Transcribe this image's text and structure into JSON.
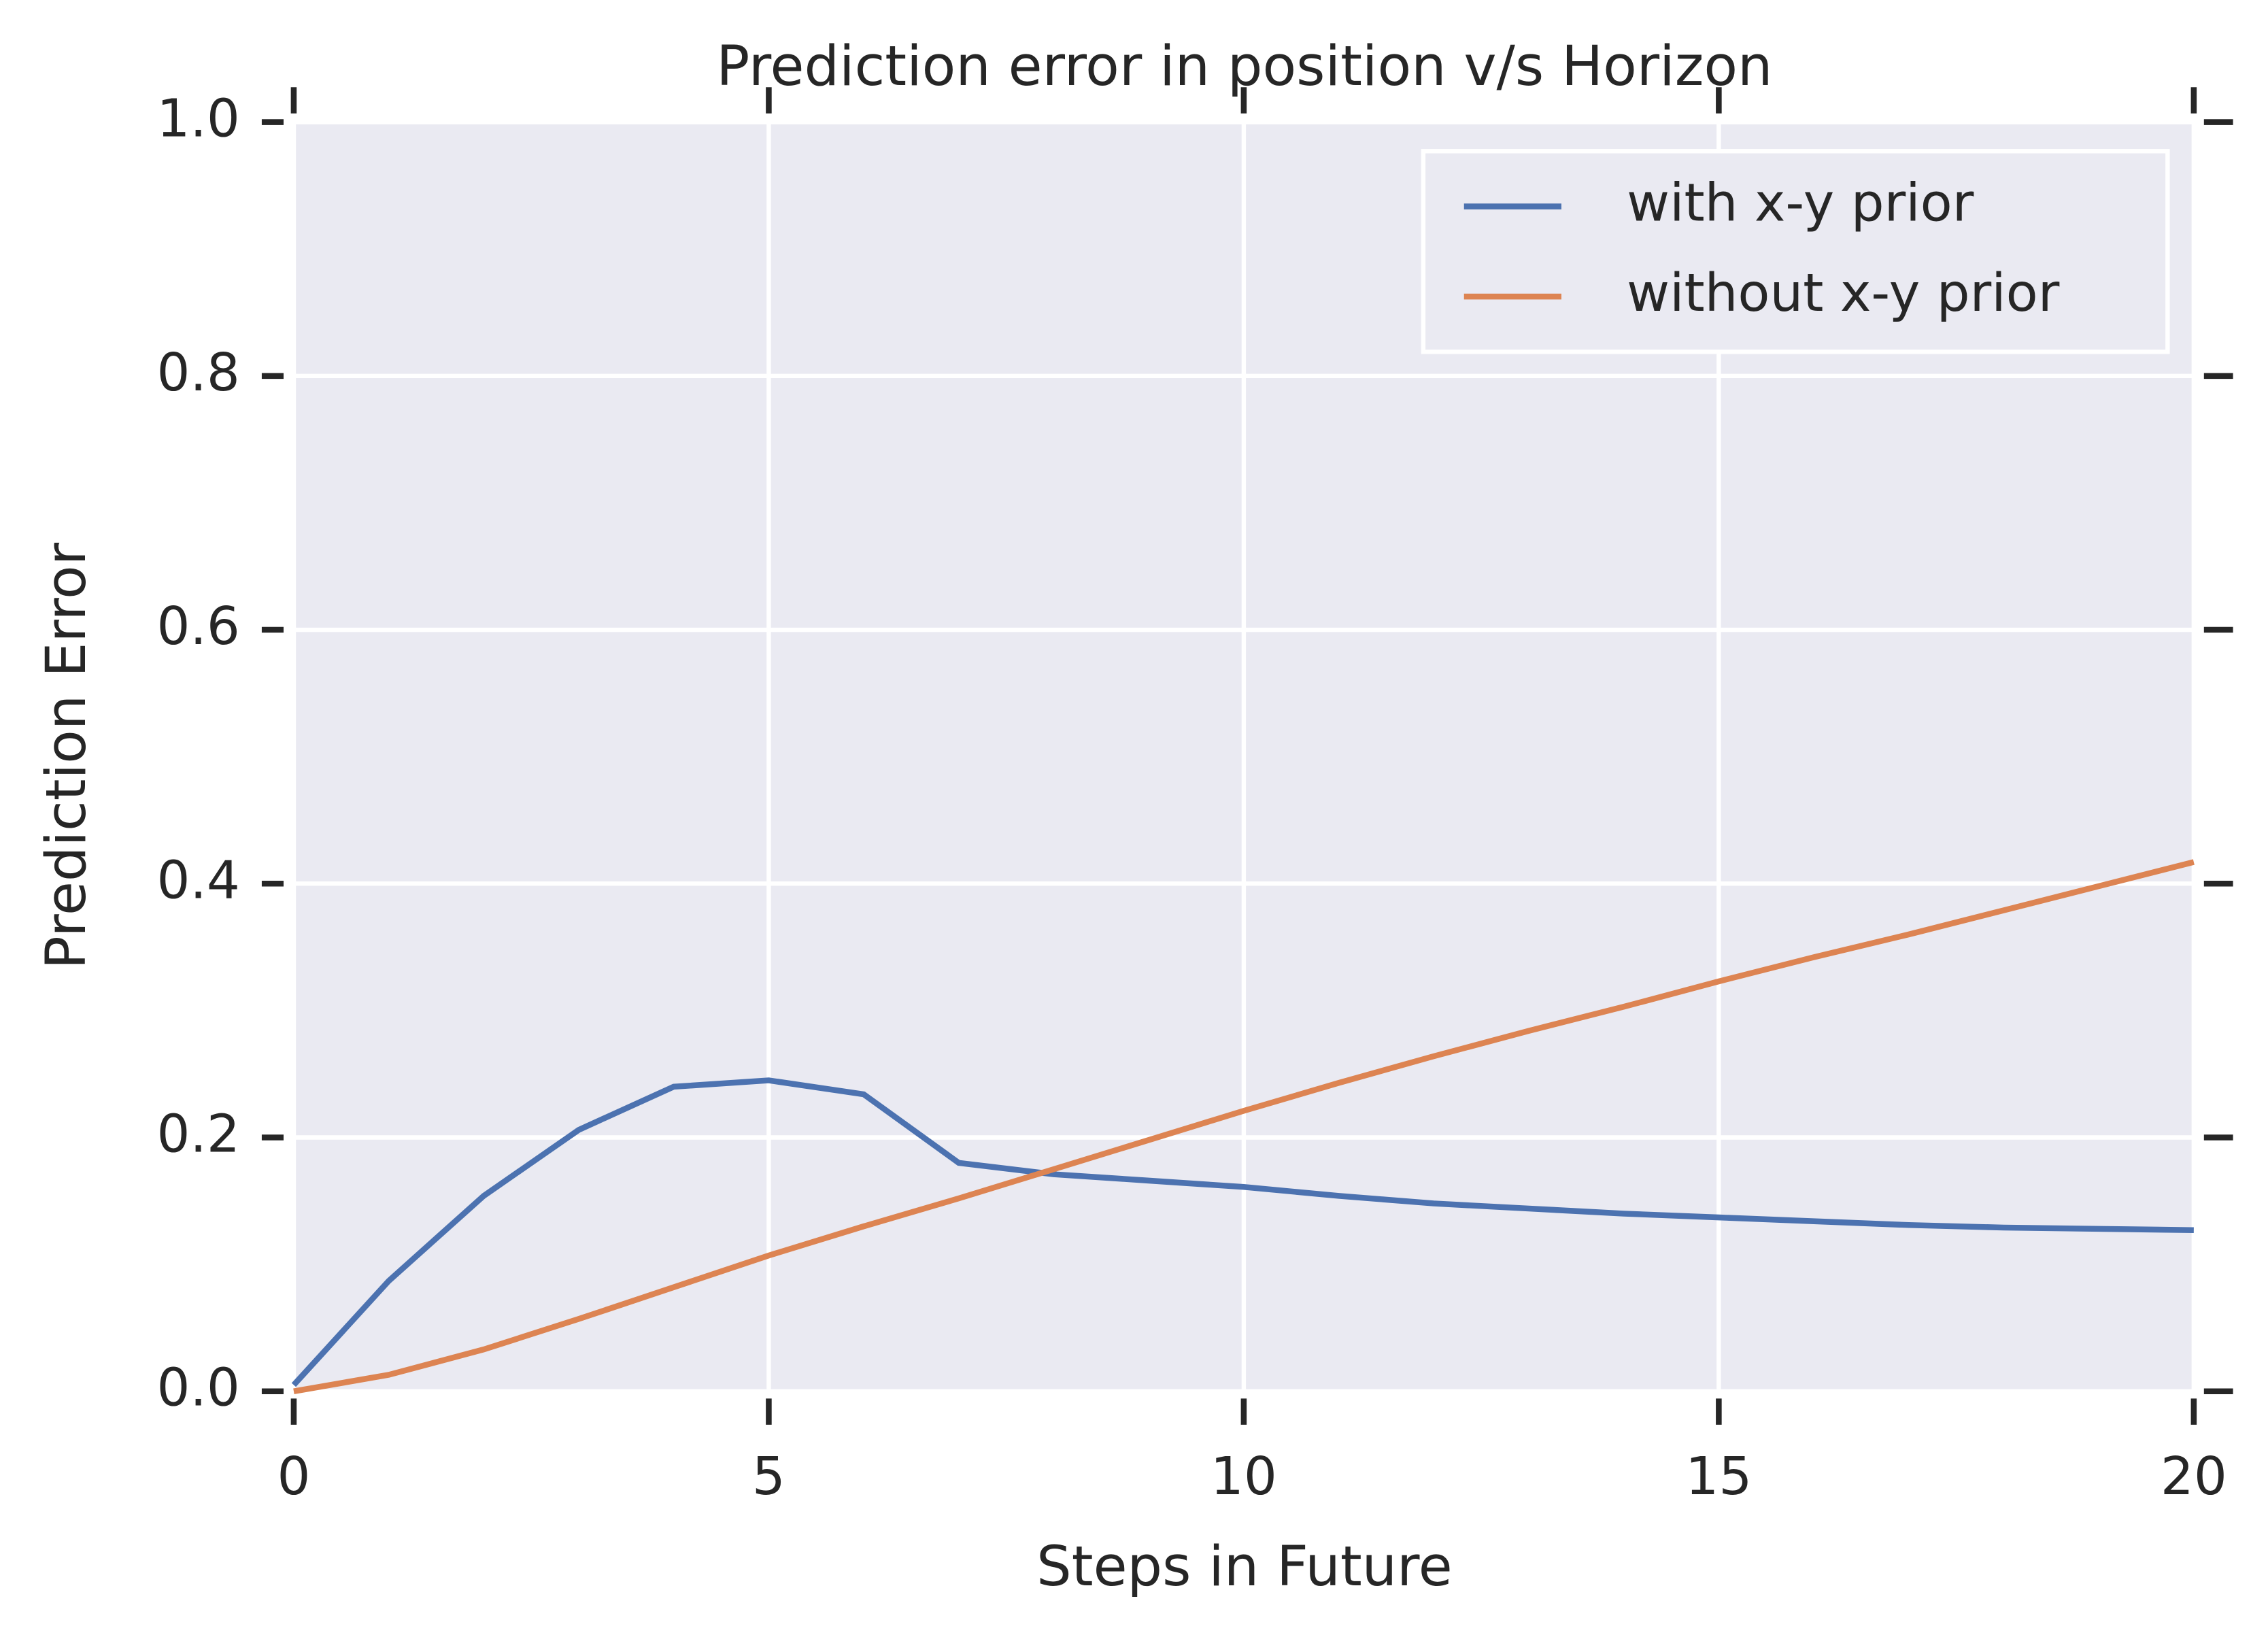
{
  "chart_data": {
    "type": "line",
    "title": "Prediction error in position v/s Horizon",
    "x_label": "Steps in Future",
    "y_label": "Prediction Error",
    "x": [
      0,
      1,
      2,
      3,
      4,
      5,
      6,
      7,
      8,
      9,
      10,
      11,
      12,
      13,
      14,
      15,
      16,
      17,
      18,
      19,
      20
    ],
    "series": [
      {
        "name": "with x-y prior",
        "color": "#4c72b0",
        "values": [
          0.005,
          0.087,
          0.154,
          0.206,
          0.24,
          0.245,
          0.234,
          0.18,
          0.171,
          0.166,
          0.161,
          0.154,
          0.148,
          0.144,
          0.14,
          0.137,
          0.134,
          0.131,
          0.129,
          0.128,
          0.127
        ]
      },
      {
        "name": "without x-y prior",
        "color": "#dd8452",
        "values": [
          0.0,
          0.013,
          0.033,
          0.057,
          0.082,
          0.107,
          0.13,
          0.152,
          0.175,
          0.198,
          0.221,
          0.243,
          0.264,
          0.284,
          0.303,
          0.323,
          0.342,
          0.36,
          0.379,
          0.398,
          0.417
        ]
      }
    ],
    "xlim": [
      0,
      20
    ],
    "xticks": [
      0,
      5,
      10,
      15,
      20
    ],
    "ylim": [
      0,
      1
    ],
    "yticks": [
      {
        "value": 0,
        "label": "0.0"
      },
      0.2,
      0.4,
      0.6,
      0.8,
      {
        "value": 1,
        "label": "1.0"
      }
    ],
    "grid": true,
    "legend": "upper right",
    "background": "#eaeaf2"
  }
}
